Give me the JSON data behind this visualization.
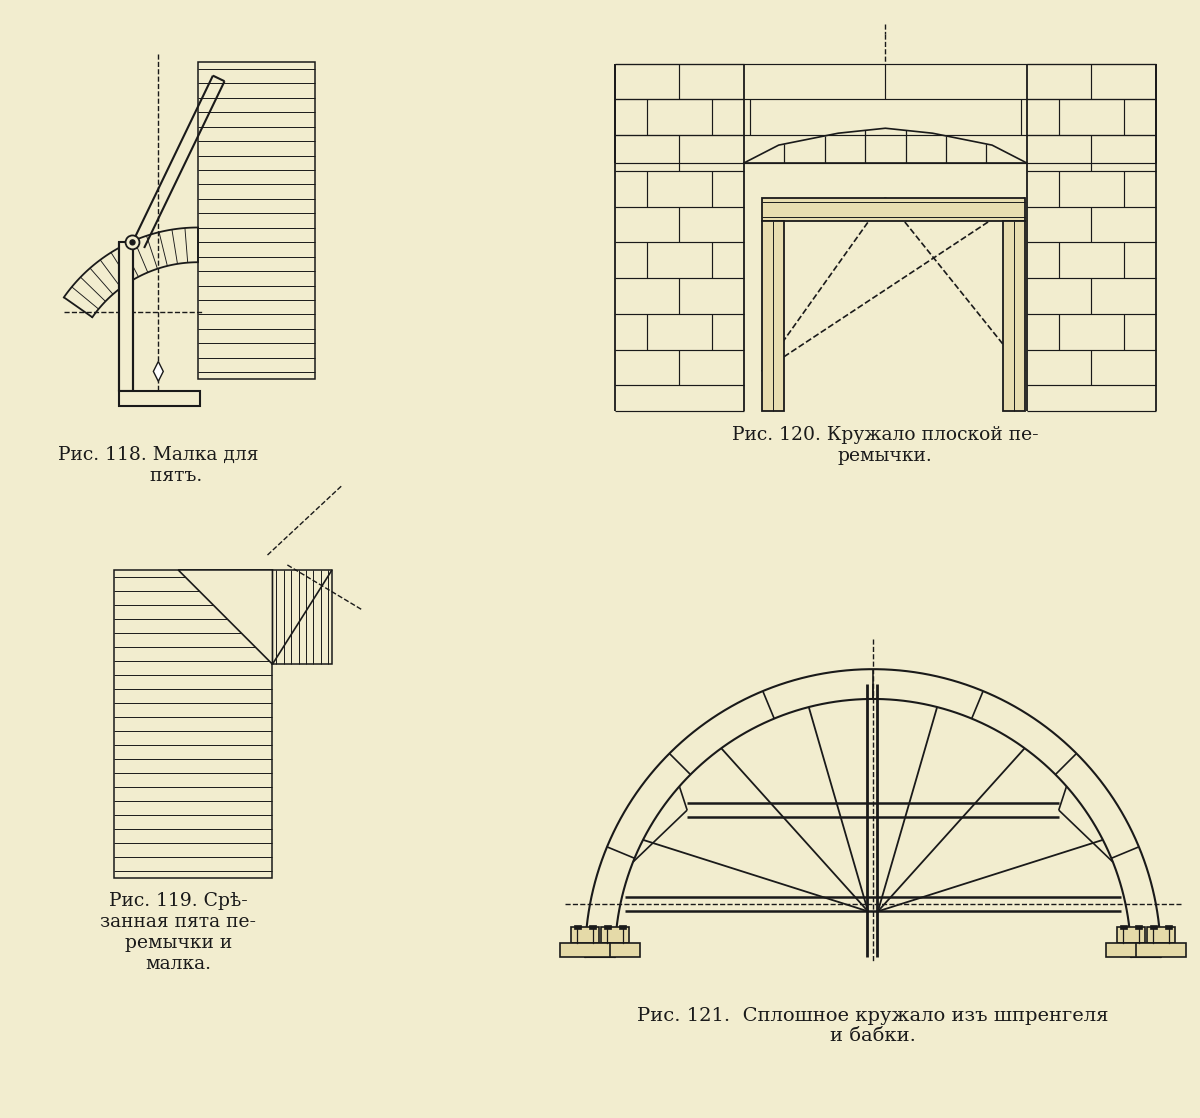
{
  "bg_color": "#f2edcf",
  "line_color": "#1a1a1a",
  "caption118": "Рис. 118. Малка для\n      пятъ.",
  "caption119": "Рис. 119. Срѣ-\nзанная пята пе-\nремычки и\nмалка.",
  "caption120": "Рис. 120. Кружало плоской пе-\nремычки.",
  "caption121": "Рис. 121.  Сплошное кружало изъ шпренгеля\nи бабки.",
  "font_size_caption": 13.5,
  "fig_width": 12.0,
  "fig_height": 11.18
}
